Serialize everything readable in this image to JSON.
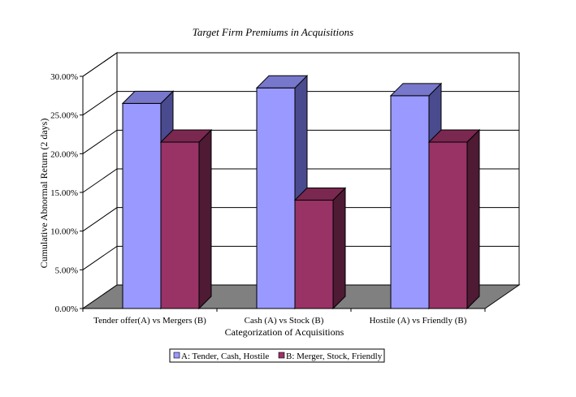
{
  "chart_data": {
    "type": "bar",
    "title": "Target Firm Premiums in Acquisitions",
    "xlabel": "Categorization of Acquisitions",
    "ylabel": "Cumulative Abnormal Return (2 days)",
    "ylim": [
      0,
      0.3
    ],
    "yticks": [
      "0.00%",
      "5.00%",
      "10.00%",
      "15.00%",
      "20.00%",
      "25.00%",
      "30.00%"
    ],
    "categories": [
      "Tender offer(A) vs Mergers (B)",
      "Cash (A) vs Stock (B)",
      "Hostile (A) vs Friendly (B)"
    ],
    "series": [
      {
        "name": "A: Tender, Cash, Hostile",
        "values": [
          0.265,
          0.285,
          0.275
        ]
      },
      {
        "name": "B: Merger, Stock, Friendly",
        "values": [
          0.215,
          0.14,
          0.215
        ]
      }
    ],
    "grid": true,
    "legend": "bottom",
    "colors": {
      "series_a_front": "#9999ff",
      "series_a_side": "#4a4a8e",
      "series_a_top": "#7777cc",
      "series_b_front": "#993366",
      "series_b_side": "#4e1a34",
      "series_b_top": "#7a284f",
      "floor": "#808080",
      "wall": "#ffffff"
    }
  }
}
